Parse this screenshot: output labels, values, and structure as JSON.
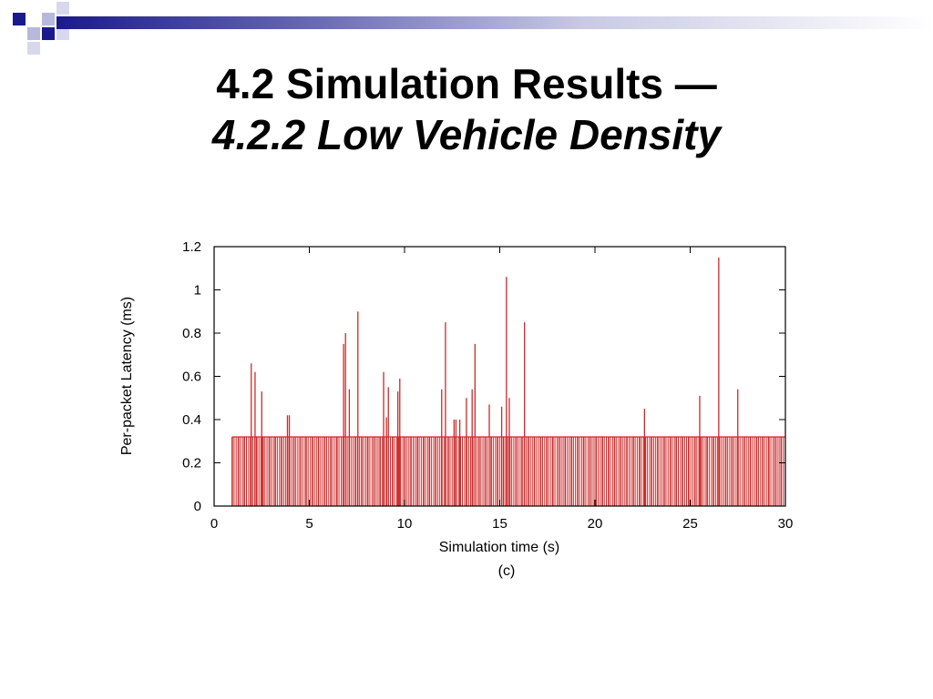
{
  "slide": {
    "title_line1": "4.2 Simulation Results —",
    "title_line2": "4.2.2 Low Vehicle Density"
  },
  "colors": {
    "header_dark": "#1a1a8c",
    "header_light": "#b8b8dc",
    "bar": "#cc2a2a",
    "axis": "#000000"
  },
  "chart_data": {
    "type": "bar",
    "title": "",
    "xlabel": "Simulation time (s)",
    "ylabel": "Per-packet Latency (ms)",
    "caption": "(c)",
    "xlim": [
      0,
      30
    ],
    "ylim": [
      0,
      1.2
    ],
    "xticks": [
      0,
      5,
      10,
      15,
      20,
      25,
      30
    ],
    "xtick_labels": [
      "0",
      "5",
      "10",
      "15",
      "20",
      "25",
      "30"
    ],
    "yticks": [
      0,
      0.2,
      0.4,
      0.6,
      0.8,
      1,
      1.2
    ],
    "ytick_labels": [
      "0",
      "0.2",
      "0.4",
      "0.6",
      "0.8",
      "1",
      "1.2"
    ],
    "grid": false,
    "legend": "none",
    "baseline": {
      "description": "dense packets at constant latency",
      "start_time": 0.95,
      "end_time": 30,
      "latency": 0.32
    },
    "spikes": [
      {
        "x": 1.95,
        "y": 0.66
      },
      {
        "x": 2.15,
        "y": 0.62
      },
      {
        "x": 2.5,
        "y": 0.53
      },
      {
        "x": 3.85,
        "y": 0.42
      },
      {
        "x": 3.95,
        "y": 0.42
      },
      {
        "x": 6.8,
        "y": 0.75
      },
      {
        "x": 6.9,
        "y": 0.8
      },
      {
        "x": 7.1,
        "y": 0.54
      },
      {
        "x": 7.55,
        "y": 0.9
      },
      {
        "x": 8.9,
        "y": 0.62
      },
      {
        "x": 9.05,
        "y": 0.41
      },
      {
        "x": 9.15,
        "y": 0.55
      },
      {
        "x": 9.65,
        "y": 0.53
      },
      {
        "x": 9.75,
        "y": 0.59
      },
      {
        "x": 11.95,
        "y": 0.54
      },
      {
        "x": 12.15,
        "y": 0.85
      },
      {
        "x": 12.6,
        "y": 0.4
      },
      {
        "x": 12.7,
        "y": 0.4
      },
      {
        "x": 12.9,
        "y": 0.4
      },
      {
        "x": 13.25,
        "y": 0.5
      },
      {
        "x": 13.55,
        "y": 0.54
      },
      {
        "x": 13.7,
        "y": 0.75
      },
      {
        "x": 14.45,
        "y": 0.47
      },
      {
        "x": 15.1,
        "y": 0.46
      },
      {
        "x": 15.35,
        "y": 1.06
      },
      {
        "x": 15.5,
        "y": 0.5
      },
      {
        "x": 16.3,
        "y": 0.85
      },
      {
        "x": 22.6,
        "y": 0.45
      },
      {
        "x": 25.5,
        "y": 0.51
      },
      {
        "x": 26.5,
        "y": 1.15
      },
      {
        "x": 27.5,
        "y": 0.54
      }
    ]
  }
}
